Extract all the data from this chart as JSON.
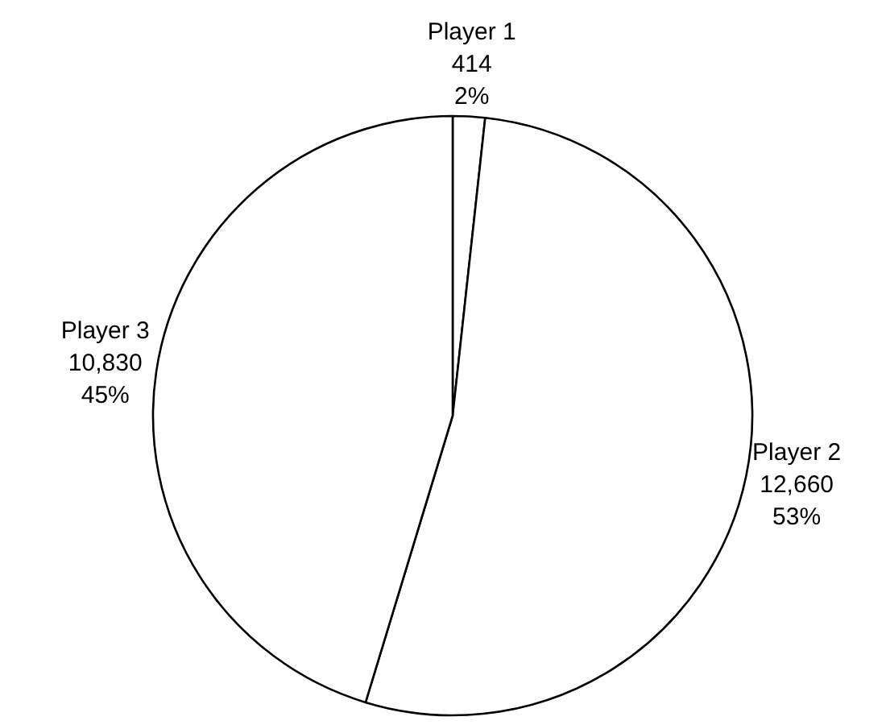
{
  "chart_data": {
    "type": "pie",
    "categories": [
      "Player 1",
      "Player 2",
      "Player 3"
    ],
    "values": [
      414,
      12660,
      10830
    ],
    "value_labels": [
      "414\n2%",
      "12,660\n53%",
      "10,830\n45%"
    ],
    "colors": [
      "#ffffff",
      "#ffffff",
      "#ffffff"
    ]
  }
}
